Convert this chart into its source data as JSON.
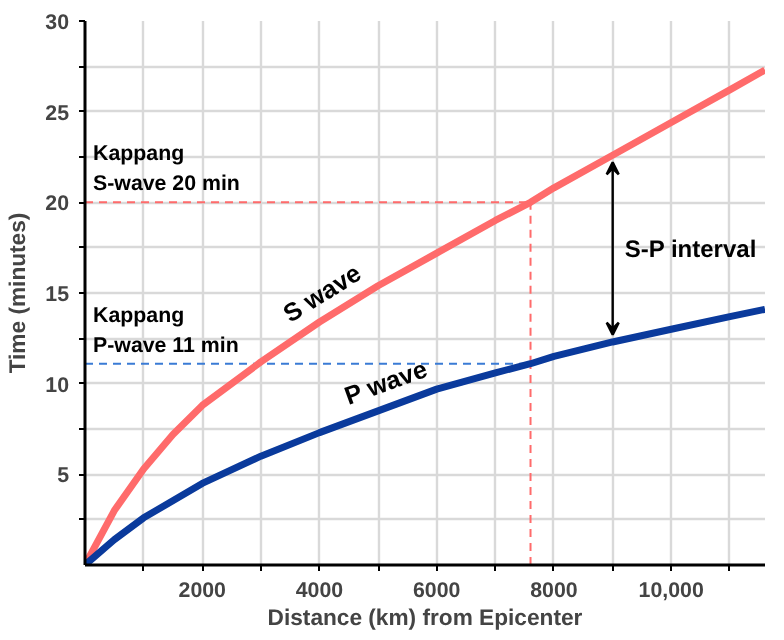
{
  "chart_data": {
    "type": "line",
    "xlabel": "Distance (km) from Epicenter",
    "ylabel": "Time (minutes)",
    "xlim": [
      0,
      11600
    ],
    "ylim": [
      0,
      30
    ],
    "xticks": [
      {
        "value": 1000,
        "label": null
      },
      2000,
      {
        "value": 3000,
        "label": null
      },
      4000,
      {
        "value": 5000,
        "label": null
      },
      6000,
      {
        "value": 7000,
        "label": null
      },
      8000,
      {
        "value": 9000,
        "label": null
      },
      {
        "value": 10000,
        "label": "10,000"
      },
      {
        "value": 11000,
        "label": null
      }
    ],
    "yticks": [
      {
        "value": 2.5,
        "label": null
      },
      5,
      {
        "value": 7.5,
        "label": null
      },
      10,
      {
        "value": 12.5,
        "label": null
      },
      15,
      {
        "value": 17.5,
        "label": null
      },
      20,
      {
        "value": 22.5,
        "label": null
      },
      25,
      {
        "value": 27.5,
        "label": null
      },
      30
    ],
    "grid": true,
    "legend": false,
    "marker": "none",
    "line_style": "solid",
    "series": [
      {
        "name": "S wave",
        "color": "#ff6b6b",
        "x": [
          0,
          500,
          1000,
          1500,
          2000,
          3000,
          4000,
          5000,
          6000,
          7000,
          7600,
          8000,
          9000,
          10000,
          11000,
          11600
        ],
        "values": [
          0,
          3,
          5.3,
          7.2,
          8.8,
          11.2,
          13.4,
          15.4,
          17.2,
          19.0,
          20,
          20.8,
          22.6,
          24.4,
          26.2,
          27.3
        ]
      },
      {
        "name": "P wave",
        "color": "#0a3a9c",
        "x": [
          0,
          500,
          1000,
          2000,
          3000,
          4000,
          5000,
          6000,
          7000,
          7600,
          8000,
          9000,
          10000,
          11000,
          11600
        ],
        "values": [
          0,
          1.4,
          2.6,
          4.5,
          6.0,
          7.3,
          8.5,
          9.7,
          10.6,
          11.1,
          11.5,
          12.3,
          13.0,
          13.7,
          14.1
        ]
      }
    ],
    "ref_lines": [
      {
        "axis": "y",
        "value": 20,
        "label": "Kappang\nS-wave 20 min",
        "color": "#ff6b6b",
        "line_style": "dashed"
      },
      {
        "axis": "y",
        "value": 11.1,
        "label": "Kappang\nP-wave 11 min",
        "color": "#3a7bd5",
        "line_style": "dashed"
      },
      {
        "axis": "x",
        "value": 7600,
        "color": "#ff6b6b",
        "line_style": "dashed"
      }
    ],
    "annotations": [
      "S-P interval"
    ]
  }
}
